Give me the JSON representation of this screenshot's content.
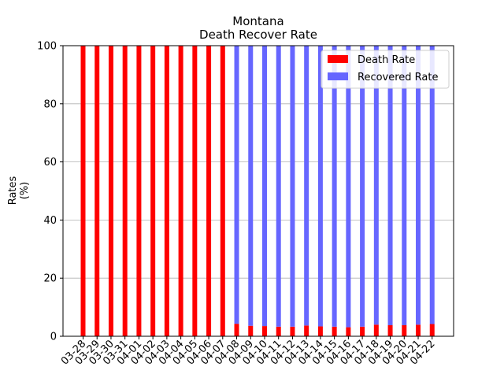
{
  "chart_data": {
    "type": "bar",
    "stacked": true,
    "title_line1": "Montana",
    "title_line2": "Death Recover Rate",
    "ylabel_line1": "Rates",
    "ylabel_line2": "(%)",
    "xlabel": "",
    "ylim": [
      0,
      100
    ],
    "yticks": [
      "0",
      "20",
      "40",
      "60",
      "80",
      "100"
    ],
    "grid": "horizontal",
    "legend_position": "top-right",
    "categories": [
      "03-28",
      "03-29",
      "03-30",
      "03-31",
      "04-01",
      "04-02",
      "04-03",
      "04-04",
      "04-05",
      "04-06",
      "04-07",
      "04-08",
      "04-09",
      "04-10",
      "04-11",
      "04-12",
      "04-13",
      "04-14",
      "04-15",
      "04-16",
      "04-17",
      "04-18",
      "04-19",
      "04-20",
      "04-21",
      "04-22"
    ],
    "series": [
      {
        "name": "Death Rate",
        "color": "#ff0000",
        "values": [
          100,
          100,
          100,
          100,
          100,
          100,
          100,
          100,
          100,
          100,
          100,
          4.3,
          3.6,
          3.5,
          3.3,
          3.3,
          3.7,
          3.4,
          3.3,
          3.1,
          3.3,
          4.0,
          3.8,
          3.8,
          4.0,
          4.2
        ]
      },
      {
        "name": "Recovered Rate",
        "color": "#6666ff",
        "values": [
          0,
          0,
          0,
          0,
          0,
          0,
          0,
          0,
          0,
          0,
          0,
          95.7,
          96.4,
          96.5,
          96.7,
          96.7,
          96.3,
          96.6,
          96.7,
          96.9,
          96.7,
          96.0,
          96.2,
          96.2,
          96.0,
          95.8
        ]
      }
    ]
  }
}
